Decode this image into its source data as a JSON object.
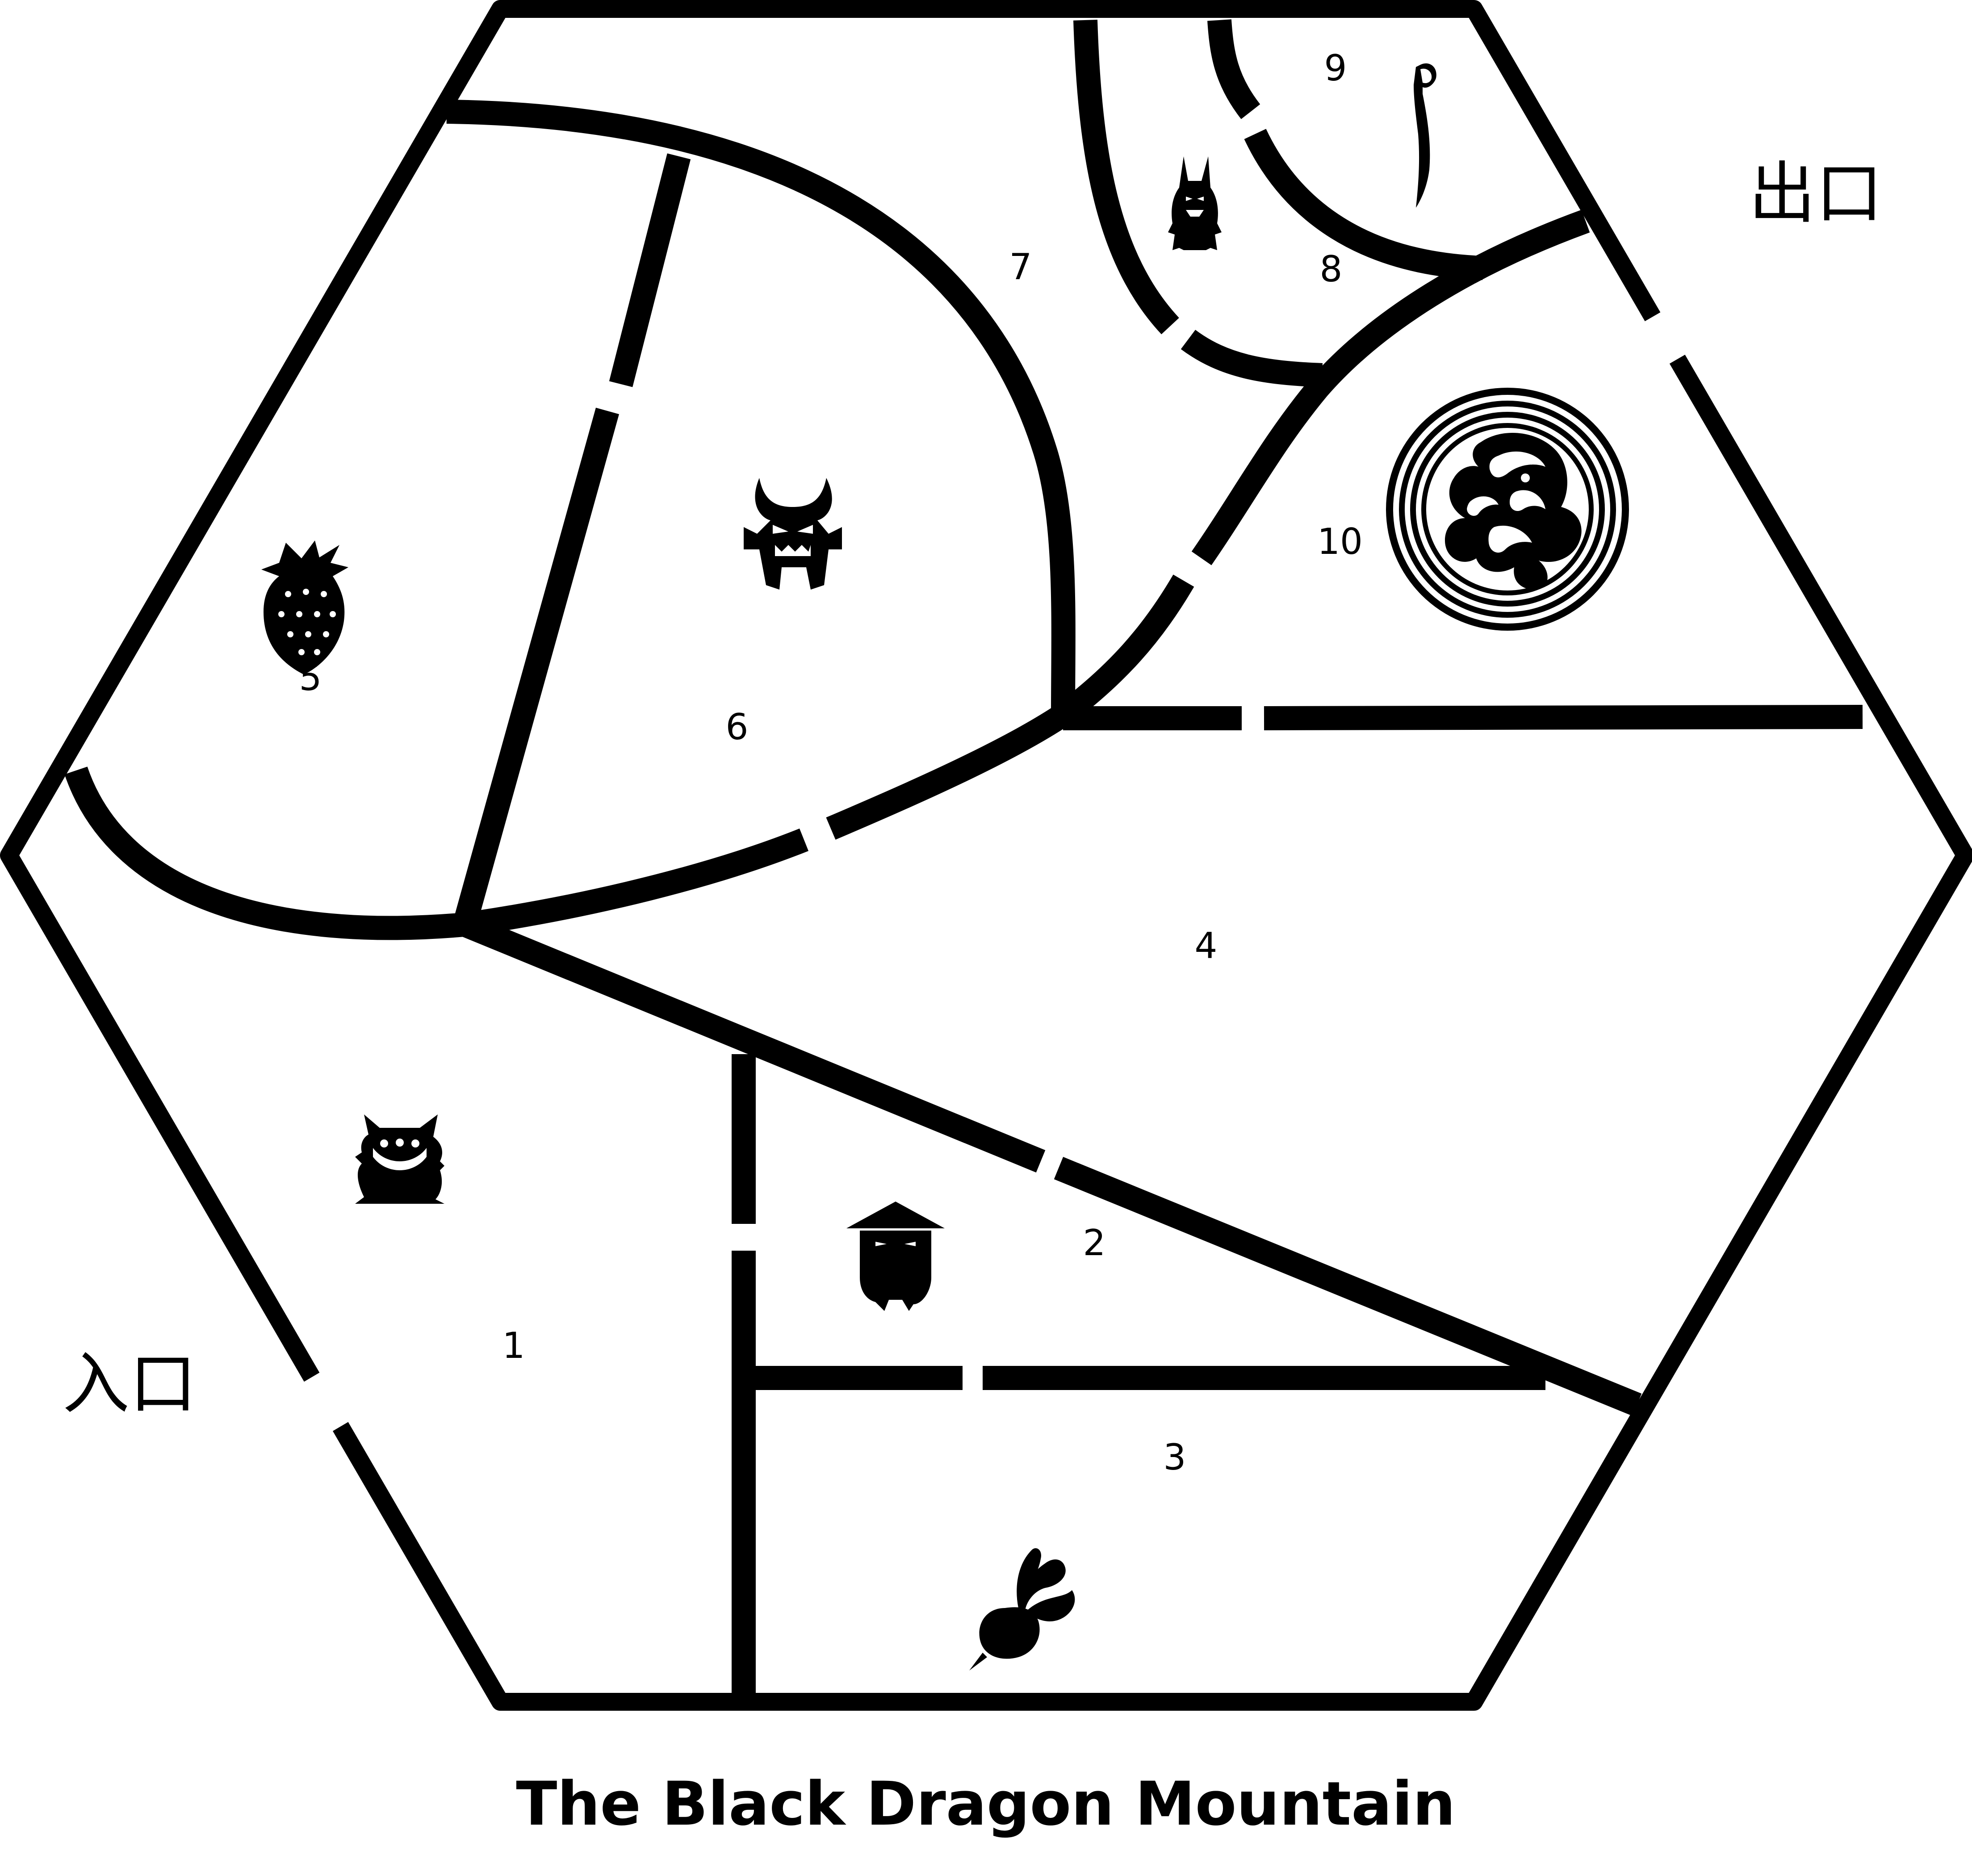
{
  "title": "The Black Dragon Mountain",
  "entrance_label": "入口",
  "exit_label": "出口",
  "rooms": [
    {
      "number": "1",
      "occupant": "horned-blob-monster"
    },
    {
      "number": "2",
      "occupant": "straw-hat-ghost"
    },
    {
      "number": "3",
      "occupant": "radish"
    },
    {
      "number": "4",
      "occupant": ""
    },
    {
      "number": "5",
      "occupant": "strawberry"
    },
    {
      "number": "6",
      "occupant": "horned-demon"
    },
    {
      "number": "7",
      "occupant": ""
    },
    {
      "number": "8",
      "occupant": "eared-imp"
    },
    {
      "number": "9",
      "occupant": "curved-sword"
    },
    {
      "number": "10",
      "occupant": "black-dragon-emblem"
    }
  ],
  "colors": {
    "ink": "#000000",
    "background": "#ffffff"
  }
}
